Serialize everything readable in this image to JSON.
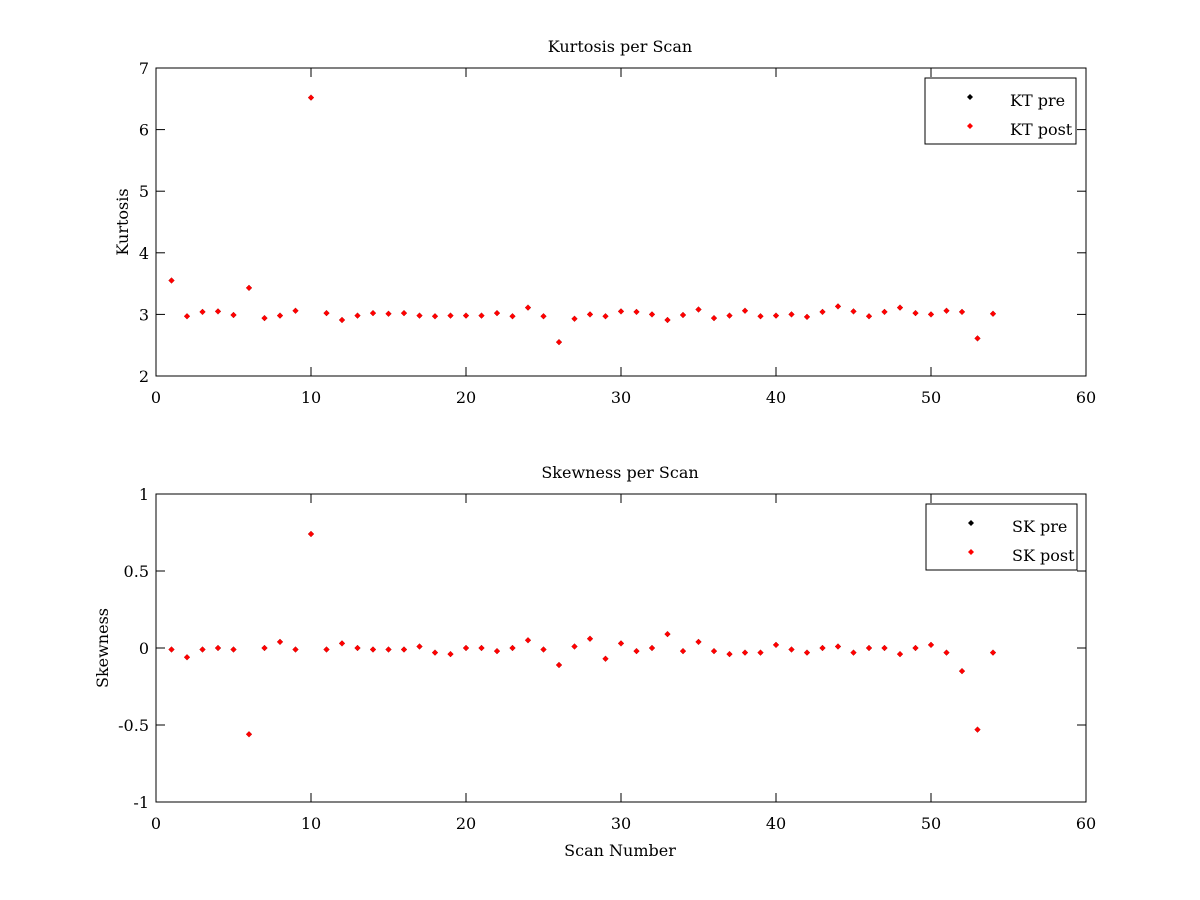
{
  "colors": {
    "background": "#ffffff",
    "axes": "#000000",
    "pre": "#000000",
    "post": "#ff0000"
  },
  "chart_data": [
    {
      "type": "scatter",
      "title": "Kurtosis per Scan",
      "xlabel": "",
      "ylabel": "Kurtosis",
      "xlim": [
        0,
        60
      ],
      "ylim": [
        2,
        7
      ],
      "xticks": [
        "0",
        "10",
        "20",
        "30",
        "40",
        "50",
        "60"
      ],
      "yticks": [
        "2",
        "3",
        "4",
        "5",
        "6",
        "7"
      ],
      "grid": false,
      "legend_position": "top-right",
      "x": [
        1,
        2,
        3,
        4,
        5,
        6,
        7,
        8,
        9,
        10,
        11,
        12,
        13,
        14,
        15,
        16,
        17,
        18,
        19,
        20,
        21,
        22,
        23,
        24,
        25,
        26,
        27,
        28,
        29,
        30,
        31,
        32,
        33,
        34,
        35,
        36,
        37,
        38,
        39,
        40,
        41,
        42,
        43,
        44,
        45,
        46,
        47,
        48,
        49,
        50,
        51,
        52,
        53,
        54
      ],
      "series": [
        {
          "name": "KT pre",
          "color": "#000000",
          "values": [
            3.55,
            2.97,
            3.04,
            3.05,
            2.99,
            3.43,
            2.94,
            2.98,
            3.06,
            6.52,
            3.02,
            2.91,
            2.98,
            3.02,
            3.01,
            3.02,
            2.98,
            2.97,
            2.98,
            2.98,
            2.98,
            3.02,
            2.97,
            3.11,
            2.97,
            2.55,
            2.93,
            3.0,
            2.97,
            3.05,
            3.04,
            3.0,
            2.91,
            2.99,
            3.08,
            2.94,
            2.98,
            3.06,
            2.97,
            2.98,
            3.0,
            2.96,
            3.04,
            3.13,
            3.05,
            2.97,
            3.04,
            3.11,
            3.02,
            3.0,
            3.06,
            3.04,
            2.61,
            3.01
          ]
        },
        {
          "name": "KT post",
          "color": "#ff0000",
          "values": [
            3.55,
            2.97,
            3.04,
            3.05,
            2.99,
            3.43,
            2.94,
            2.98,
            3.06,
            6.52,
            3.02,
            2.91,
            2.98,
            3.02,
            3.01,
            3.02,
            2.98,
            2.97,
            2.98,
            2.98,
            2.98,
            3.02,
            2.97,
            3.11,
            2.97,
            2.55,
            2.93,
            3.0,
            2.97,
            3.05,
            3.04,
            3.0,
            2.91,
            2.99,
            3.08,
            2.94,
            2.98,
            3.06,
            2.97,
            2.98,
            3.0,
            2.96,
            3.04,
            3.13,
            3.05,
            2.97,
            3.04,
            3.11,
            3.02,
            3.0,
            3.06,
            3.04,
            2.61,
            3.01
          ]
        }
      ]
    },
    {
      "type": "scatter",
      "title": "Skewness per Scan",
      "xlabel": "Scan Number",
      "ylabel": "Skewness",
      "xlim": [
        0,
        60
      ],
      "ylim": [
        -1,
        1
      ],
      "xticks": [
        "0",
        "10",
        "20",
        "30",
        "40",
        "50",
        "60"
      ],
      "yticks": [
        "-1",
        "-0.5",
        "0",
        "0.5",
        "1"
      ],
      "grid": false,
      "legend_position": "top-right",
      "x": [
        1,
        2,
        3,
        4,
        5,
        6,
        7,
        8,
        9,
        10,
        11,
        12,
        13,
        14,
        15,
        16,
        17,
        18,
        19,
        20,
        21,
        22,
        23,
        24,
        25,
        26,
        27,
        28,
        29,
        30,
        31,
        32,
        33,
        34,
        35,
        36,
        37,
        38,
        39,
        40,
        41,
        42,
        43,
        44,
        45,
        46,
        47,
        48,
        49,
        50,
        51,
        52,
        53,
        54
      ],
      "series": [
        {
          "name": "SK pre",
          "color": "#000000",
          "values": [
            -0.01,
            -0.06,
            -0.01,
            0.0,
            -0.01,
            -0.56,
            0.0,
            0.04,
            -0.01,
            0.74,
            -0.01,
            0.03,
            0.0,
            -0.01,
            -0.01,
            -0.01,
            0.01,
            -0.03,
            -0.04,
            0.0,
            0.0,
            -0.02,
            0.0,
            0.05,
            -0.01,
            -0.11,
            0.01,
            0.06,
            -0.07,
            0.03,
            -0.02,
            0.0,
            0.09,
            -0.02,
            0.04,
            -0.02,
            -0.04,
            -0.03,
            -0.03,
            0.02,
            -0.01,
            -0.03,
            0.0,
            0.01,
            -0.03,
            0.0,
            0.0,
            -0.04,
            0.0,
            0.02,
            -0.03,
            -0.15,
            -0.53,
            -0.03
          ]
        },
        {
          "name": "SK post",
          "color": "#ff0000",
          "values": [
            -0.01,
            -0.06,
            -0.01,
            0.0,
            -0.01,
            -0.56,
            0.0,
            0.04,
            -0.01,
            0.74,
            -0.01,
            0.03,
            0.0,
            -0.01,
            -0.01,
            -0.01,
            0.01,
            -0.03,
            -0.04,
            0.0,
            0.0,
            -0.02,
            0.0,
            0.05,
            -0.01,
            -0.11,
            0.01,
            0.06,
            -0.07,
            0.03,
            -0.02,
            0.0,
            0.09,
            -0.02,
            0.04,
            -0.02,
            -0.04,
            -0.03,
            -0.03,
            0.02,
            -0.01,
            -0.03,
            0.0,
            0.01,
            -0.03,
            0.0,
            0.0,
            -0.04,
            0.0,
            0.02,
            -0.03,
            -0.15,
            -0.53,
            -0.03
          ]
        }
      ]
    }
  ]
}
